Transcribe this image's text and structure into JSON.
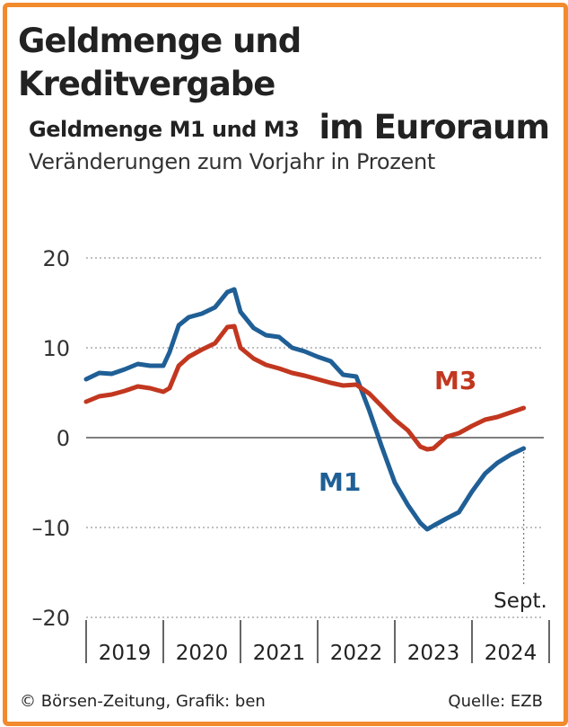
{
  "title_line1": "Geldmenge und Kreditvergabe",
  "title_line2": "im Euroraum",
  "subtitle": "Geldmenge M1 und M3",
  "unit_label": "Veränderungen zum Vorjahr in Prozent",
  "footer_left": "© Börsen-Zeitung, Grafik: ben",
  "footer_right": "Quelle: EZB",
  "colors": {
    "frame": "#f28a2e",
    "m1": "#1f5f96",
    "m3": "#c2371f",
    "grid": "#9a9a9a",
    "zero": "#555555"
  },
  "chart_data": {
    "type": "line",
    "title": "Geldmenge M1 und M3",
    "subtitle": "Veränderungen zum Vorjahr in Prozent",
    "ylim": [
      -20,
      20
    ],
    "yticks": [
      "20",
      "10",
      "0",
      "-10",
      "-20"
    ],
    "ytick_values": [
      20,
      10,
      0,
      -10,
      -20
    ],
    "x_range": [
      2019.0,
      2025.0
    ],
    "x_categories": [
      "2019",
      "2020",
      "2021",
      "2022",
      "2023",
      "2024"
    ],
    "grid": true,
    "end_annotation": "Sept.",
    "series": [
      {
        "name": "M1",
        "color": "#1f5f96",
        "points": [
          [
            2019.0,
            6.5
          ],
          [
            2019.17,
            7.2
          ],
          [
            2019.33,
            7.1
          ],
          [
            2019.5,
            7.6
          ],
          [
            2019.67,
            8.2
          ],
          [
            2019.83,
            8.0
          ],
          [
            2020.0,
            8.0
          ],
          [
            2020.08,
            9.5
          ],
          [
            2020.2,
            12.5
          ],
          [
            2020.33,
            13.4
          ],
          [
            2020.5,
            13.8
          ],
          [
            2020.67,
            14.5
          ],
          [
            2020.83,
            16.2
          ],
          [
            2020.92,
            16.5
          ],
          [
            2021.0,
            14.0
          ],
          [
            2021.17,
            12.2
          ],
          [
            2021.33,
            11.4
          ],
          [
            2021.5,
            11.2
          ],
          [
            2021.67,
            10.0
          ],
          [
            2021.83,
            9.6
          ],
          [
            2022.0,
            9.0
          ],
          [
            2022.17,
            8.5
          ],
          [
            2022.33,
            7.0
          ],
          [
            2022.5,
            6.8
          ],
          [
            2022.67,
            3.0
          ],
          [
            2022.83,
            -1.0
          ],
          [
            2023.0,
            -5.0
          ],
          [
            2023.17,
            -7.5
          ],
          [
            2023.33,
            -9.5
          ],
          [
            2023.42,
            -10.2
          ],
          [
            2023.5,
            -9.8
          ],
          [
            2023.67,
            -9.0
          ],
          [
            2023.83,
            -8.3
          ],
          [
            2024.0,
            -6.0
          ],
          [
            2024.17,
            -4.0
          ],
          [
            2024.33,
            -2.8
          ],
          [
            2024.5,
            -1.9
          ],
          [
            2024.67,
            -1.2
          ]
        ]
      },
      {
        "name": "M3",
        "color": "#c2371f",
        "points": [
          [
            2019.0,
            4.0
          ],
          [
            2019.17,
            4.6
          ],
          [
            2019.33,
            4.8
          ],
          [
            2019.5,
            5.2
          ],
          [
            2019.67,
            5.7
          ],
          [
            2019.83,
            5.5
          ],
          [
            2020.0,
            5.1
          ],
          [
            2020.08,
            5.5
          ],
          [
            2020.2,
            8.0
          ],
          [
            2020.33,
            9.0
          ],
          [
            2020.5,
            9.8
          ],
          [
            2020.67,
            10.5
          ],
          [
            2020.83,
            12.3
          ],
          [
            2020.92,
            12.4
          ],
          [
            2021.0,
            10.0
          ],
          [
            2021.17,
            8.8
          ],
          [
            2021.33,
            8.1
          ],
          [
            2021.5,
            7.7
          ],
          [
            2021.67,
            7.2
          ],
          [
            2021.83,
            6.9
          ],
          [
            2022.0,
            6.5
          ],
          [
            2022.17,
            6.1
          ],
          [
            2022.33,
            5.8
          ],
          [
            2022.5,
            5.9
          ],
          [
            2022.67,
            4.9
          ],
          [
            2022.83,
            3.5
          ],
          [
            2023.0,
            2.0
          ],
          [
            2023.17,
            0.8
          ],
          [
            2023.33,
            -1.0
          ],
          [
            2023.42,
            -1.3
          ],
          [
            2023.5,
            -1.2
          ],
          [
            2023.67,
            0.1
          ],
          [
            2023.83,
            0.5
          ],
          [
            2024.0,
            1.3
          ],
          [
            2024.17,
            2.0
          ],
          [
            2024.33,
            2.3
          ],
          [
            2024.5,
            2.8
          ],
          [
            2024.67,
            3.3
          ]
        ]
      }
    ]
  }
}
